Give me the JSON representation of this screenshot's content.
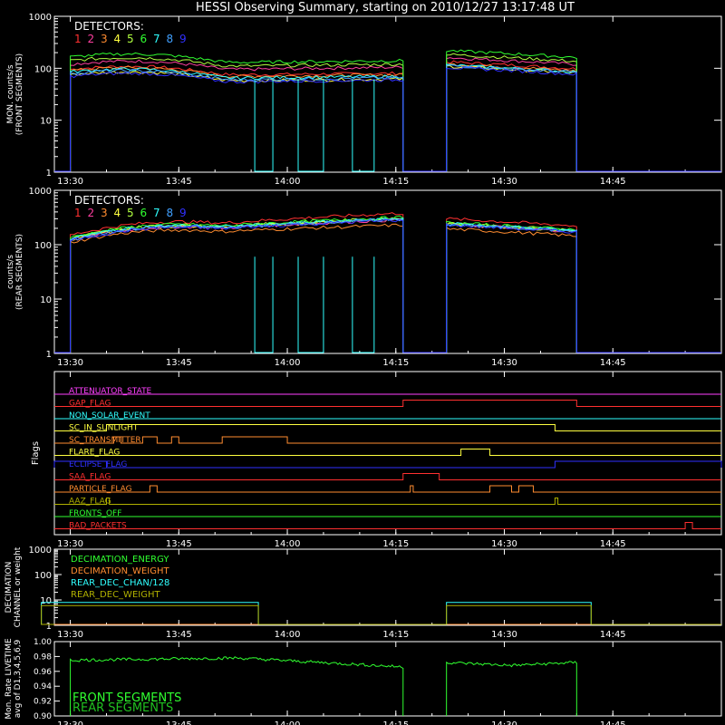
{
  "title": "HESSI Observing Summary, starting on 2010/12/27 13:17:48 UT",
  "colors": {
    "background": "#000000",
    "axes": "#ffffff",
    "det1": "#ff3030",
    "det2": "#ff3fa0",
    "det3": "#ff8c30",
    "det4": "#ffff40",
    "det5": "#b0ff40",
    "det6": "#30ff30",
    "det7": "#30ffff",
    "det8": "#40a0ff",
    "det9": "#3030ff"
  },
  "time_axis": {
    "start_min": 807.8,
    "end_min": 900,
    "tick_labels": [
      "13:30",
      "13:45",
      "14:00",
      "14:15",
      "14:30",
      "14:45"
    ]
  },
  "chart_data": [
    {
      "type": "line",
      "ylabel_lines": [
        "MON. counts/s",
        "(FRONT SEGMENTS)"
      ],
      "ylog": true,
      "ylim": [
        1,
        1000
      ],
      "ytick_labels": [
        "1",
        "10",
        "100",
        "1000"
      ],
      "legend_title": "DETECTORS:",
      "legend_items": [
        "1",
        "2",
        "3",
        "4",
        "5",
        "6",
        "7",
        "8",
        "9"
      ],
      "intervals_x": [
        [
          "13:30",
          "14:16"
        ],
        [
          "14:22",
          "14:40"
        ]
      ],
      "series": [
        {
          "name": "1",
          "level_start": 95,
          "level_mid": 75,
          "level_end": 80,
          "level_b": 115
        },
        {
          "name": "2",
          "level_start": 120,
          "level_mid": 95,
          "level_end": 105,
          "level_b": 140
        },
        {
          "name": "3",
          "level_start": 90,
          "level_mid": 70,
          "level_end": 75,
          "level_b": 105
        },
        {
          "name": "4",
          "level_start": 75,
          "level_mid": 58,
          "level_end": 62,
          "level_b": 95
        },
        {
          "name": "5",
          "level_start": 140,
          "level_mid": 110,
          "level_end": 120,
          "level_b": 160
        },
        {
          "name": "6",
          "level_start": 165,
          "level_mid": 130,
          "level_end": 140,
          "level_b": 190
        },
        {
          "name": "7",
          "level_start": 85,
          "level_mid": 65,
          "level_end": 70,
          "level_b": 100
        },
        {
          "name": "8",
          "level_start": 80,
          "level_mid": 60,
          "level_end": 66,
          "level_b": 98
        },
        {
          "name": "9",
          "level_start": 70,
          "level_mid": 55,
          "level_end": 60,
          "level_b": 90
        }
      ]
    },
    {
      "type": "line",
      "ylabel_lines": [
        "counts/s",
        "(REAR SEGMENTS)"
      ],
      "ylog": true,
      "ylim": [
        1,
        1000
      ],
      "ytick_labels": [
        "1",
        "10",
        "100",
        "1000"
      ],
      "legend_title": "DETECTORS:",
      "legend_items": [
        "1",
        "2",
        "3",
        "4",
        "5",
        "6",
        "7",
        "8",
        "9"
      ],
      "intervals_x": [
        [
          "13:30",
          "14:16"
        ],
        [
          "14:22",
          "14:40"
        ]
      ],
      "series": [
        {
          "name": "1",
          "level_start": 150,
          "level_mid": 260,
          "level_end": 380,
          "level_b": 260
        },
        {
          "name": "2",
          "level_start": 120,
          "level_mid": 210,
          "level_end": 290,
          "level_b": 205
        },
        {
          "name": "3",
          "level_start": 110,
          "level_mid": 180,
          "level_end": 230,
          "level_b": 170
        },
        {
          "name": "4",
          "level_start": 125,
          "level_mid": 215,
          "level_end": 300,
          "level_b": 210
        },
        {
          "name": "5",
          "level_start": 130,
          "level_mid": 225,
          "level_end": 310,
          "level_b": 215
        },
        {
          "name": "6",
          "level_start": 135,
          "level_mid": 230,
          "level_end": 320,
          "level_b": 220
        },
        {
          "name": "7",
          "level_start": 128,
          "level_mid": 220,
          "level_end": 300,
          "level_b": 212
        },
        {
          "name": "8",
          "level_start": 122,
          "level_mid": 212,
          "level_end": 295,
          "level_b": 205
        },
        {
          "name": "9",
          "level_start": 118,
          "level_mid": 205,
          "level_end": 285,
          "level_b": 200
        }
      ]
    },
    {
      "type": "flags",
      "ylabel": "Flags",
      "flags": [
        {
          "name": "ATTENUATOR_STATE",
          "color": "#ff40ff",
          "on": []
        },
        {
          "name": "GAP_FLAG",
          "color": "#ff3030",
          "on": [
            [
              "14:16",
              "14:40"
            ]
          ]
        },
        {
          "name": "NON_SOLAR_EVENT",
          "color": "#30ffff",
          "on": []
        },
        {
          "name": "SC_IN_SUNLIGHT",
          "color": "#ffff40",
          "on": [
            [
              "13:35",
              "14:37"
            ]
          ]
        },
        {
          "name": "SC_TRANSMITTER",
          "color": "#ff8c30",
          "on": [
            [
              "13:36",
              "13:37"
            ],
            [
              "13:40",
              "13:42"
            ],
            [
              "13:44",
              "13:45"
            ],
            [
              "13:51",
              "14:00"
            ]
          ]
        },
        {
          "name": "FLARE_FLAG",
          "color": "#ffff40",
          "on": [
            [
              "14:24",
              "14:28"
            ]
          ]
        },
        {
          "name": "ECLIPSE_FLAG",
          "color": "#3030ff",
          "on": [
            [
              "13:17",
              "13:35"
            ],
            [
              "14:37",
              "15:00"
            ]
          ]
        },
        {
          "name": "SAA_FLAG",
          "color": "#ff3030",
          "on": [
            [
              "14:16",
              "14:21"
            ]
          ]
        },
        {
          "name": "PARTICLE_FLAG",
          "color": "#ff8c30",
          "on": [
            [
              "13:41",
              "13:42"
            ],
            [
              "14:17",
              "14:17"
            ],
            [
              "14:28",
              "14:31"
            ],
            [
              "14:32",
              "14:34"
            ]
          ]
        },
        {
          "name": "AAZ_FLAG",
          "color": "#b0b000",
          "on": [
            [
              "13:35",
              "13:35"
            ],
            [
              "14:37",
              "14:37"
            ]
          ]
        },
        {
          "name": "FRONTS_OFF",
          "color": "#30ff30",
          "on": []
        },
        {
          "name": "BAD_PACKETS",
          "color": "#ff3030",
          "on": [
            [
              "14:55",
              "14:56"
            ]
          ]
        }
      ]
    },
    {
      "type": "line",
      "ylabel_lines": [
        "DECIMATION",
        "CHANNEL or weight"
      ],
      "ylog": true,
      "ylim": [
        1,
        1000
      ],
      "ytick_labels": [
        "1",
        "10",
        "100",
        "1000"
      ],
      "series": [
        {
          "name": "DECIMATION_ENERGY",
          "color": "#30ff30",
          "steps": []
        },
        {
          "name": "DECIMATION_WEIGHT",
          "color": "#ff8c30",
          "steps": []
        },
        {
          "name": "REAR_DEC_CHAN/128",
          "color": "#30ffff",
          "steps": [
            [
              "13:26",
              "13:56",
              8
            ],
            [
              "14:22",
              "14:42",
              8
            ]
          ]
        },
        {
          "name": "REAR_DEC_WEIGHT",
          "color": "#b0b000",
          "steps": [
            [
              "13:26",
              "13:56",
              6
            ],
            [
              "14:22",
              "14:42",
              6
            ]
          ]
        }
      ]
    },
    {
      "type": "line",
      "ylabel_lines": [
        "Mon. Rate LIVETIME",
        "avg of D1,3,4,5,6,9"
      ],
      "ylim": [
        0.9,
        1.0
      ],
      "ytick_labels": [
        "0.90",
        "0.92",
        "0.94",
        "0.96",
        "0.98",
        "1.00"
      ],
      "series": [
        {
          "name": "FRONT SEGMENTS",
          "color": "#30ff30",
          "segments": [
            [
              "13:30",
              "14:16",
              0.975,
              0.978,
              0.966
            ],
            [
              "14:22",
              "14:40",
              0.972,
              0.968,
              0.972
            ]
          ]
        },
        {
          "name": "REAR SEGMENTS",
          "color": "#20c020",
          "segments": []
        }
      ]
    }
  ]
}
